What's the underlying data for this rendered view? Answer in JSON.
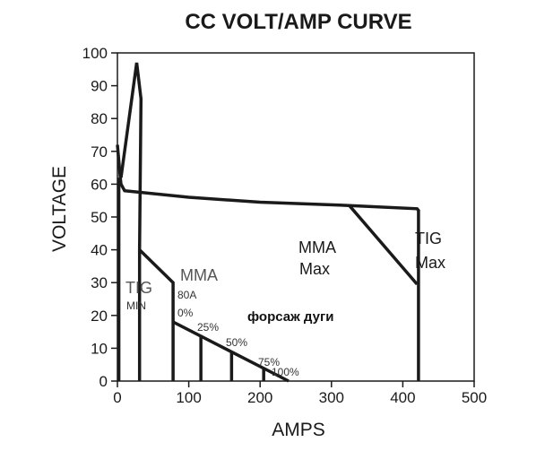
{
  "chart_data": {
    "type": "line",
    "title": "CC VOLT/AMP CURVE",
    "xlabel": "AMPS",
    "ylabel": "VOLTAGE",
    "xlim": [
      0,
      500
    ],
    "ylim": [
      0,
      100
    ],
    "xticks": [
      0,
      100,
      200,
      300,
      400,
      500
    ],
    "yticks": [
      0,
      10,
      20,
      30,
      40,
      50,
      60,
      70,
      80,
      90,
      100
    ],
    "grid": false,
    "series": [
      {
        "key": "main",
        "points": [
          [
            0,
            72
          ],
          [
            4,
            62
          ],
          [
            5,
            60
          ],
          [
            10,
            58
          ],
          [
            100,
            56
          ],
          [
            200,
            54.5
          ],
          [
            325,
            53.5
          ],
          [
            420,
            52.5
          ],
          [
            422,
            52
          ],
          [
            422,
            0
          ]
        ]
      },
      {
        "key": "mma-max",
        "points": [
          [
            325,
            53.5
          ],
          [
            420,
            29.5
          ]
        ]
      },
      {
        "key": "tig-spike",
        "points": [
          [
            5,
            62
          ],
          [
            27,
            97
          ],
          [
            33,
            86
          ],
          [
            31,
            40
          ],
          [
            31,
            0
          ]
        ]
      },
      {
        "key": "tig-min",
        "points": [
          [
            2,
            62
          ],
          [
            2,
            0
          ]
        ]
      },
      {
        "key": "mma-droop",
        "points": [
          [
            31,
            40
          ],
          [
            78,
            30
          ],
          [
            78,
            0
          ]
        ]
      },
      {
        "key": "arc-force-line",
        "points": [
          [
            78,
            18
          ],
          [
            240,
            0
          ]
        ]
      },
      {
        "key": "arc-force-verticals",
        "segments": [
          [
            [
              117,
              14
            ],
            [
              117,
              0
            ]
          ],
          [
            [
              160,
              9
            ],
            [
              160,
              0
            ]
          ],
          [
            [
              205,
              4
            ],
            [
              205,
              0
            ]
          ]
        ]
      }
    ],
    "annotations": [
      {
        "key": "tig_min_a",
        "text": "TIG"
      },
      {
        "key": "tig_min_b",
        "text": "MIN"
      },
      {
        "key": "mma_a",
        "text": "MMA"
      },
      {
        "key": "mma_80a",
        "text": "80A"
      },
      {
        "key": "p0",
        "text": "0%"
      },
      {
        "key": "p25",
        "text": "25%"
      },
      {
        "key": "p50",
        "text": "50%"
      },
      {
        "key": "p75",
        "text": "75%"
      },
      {
        "key": "p100",
        "text": "100%"
      },
      {
        "key": "arc_force",
        "text": "форсаж дуги"
      },
      {
        "key": "mma_max_a",
        "text": "MMA"
      },
      {
        "key": "mma_max_b",
        "text": "Max"
      },
      {
        "key": "tig_max_a",
        "text": "TIG"
      },
      {
        "key": "tig_max_b",
        "text": "Max"
      }
    ]
  }
}
